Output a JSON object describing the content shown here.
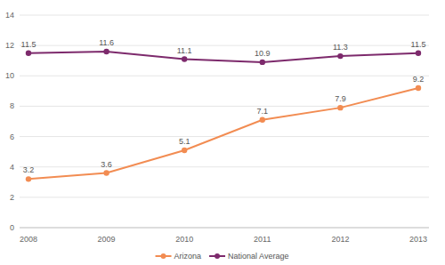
{
  "chart_data": {
    "type": "line",
    "categories": [
      "2008",
      "2009",
      "2010",
      "2011",
      "2012",
      "2013"
    ],
    "series": [
      {
        "name": "Arizona",
        "color": "#f28c52",
        "marker": "circle",
        "values": [
          3.2,
          3.6,
          5.1,
          7.1,
          7.9,
          9.2
        ]
      },
      {
        "name": "National Average",
        "color": "#7d2a6c",
        "marker": "circle",
        "values": [
          11.5,
          11.6,
          11.1,
          10.9,
          11.3,
          11.5
        ]
      }
    ],
    "ylim": [
      0,
      14
    ],
    "yticks": [
      0,
      2,
      4,
      6,
      8,
      10,
      12,
      14
    ],
    "grid": true,
    "legend": "bottom",
    "data_labels": true
  }
}
